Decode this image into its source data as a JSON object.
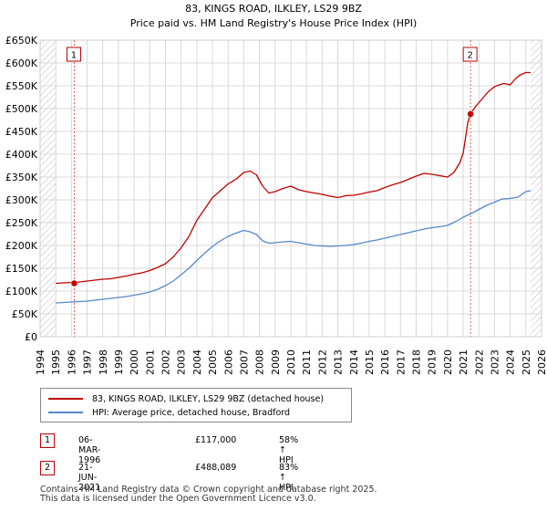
{
  "chart_data": {
    "type": "line",
    "title": "83, KINGS ROAD, ILKLEY, LS29 9BZ",
    "subtitle": "Price paid vs. HM Land Registry's House Price Index (HPI)",
    "xlim": [
      1994,
      2026
    ],
    "ylim": [
      0,
      650000
    ],
    "y_ticks": [
      0,
      50000,
      100000,
      150000,
      200000,
      250000,
      300000,
      350000,
      400000,
      450000,
      500000,
      550000,
      600000,
      650000
    ],
    "y_tick_labels": [
      "£0",
      "£50K",
      "£100K",
      "£150K",
      "£200K",
      "£250K",
      "£300K",
      "£350K",
      "£400K",
      "£450K",
      "£500K",
      "£550K",
      "£600K",
      "£650K"
    ],
    "x_ticks": [
      "1994",
      "1995",
      "1996",
      "1997",
      "1998",
      "1999",
      "2000",
      "2001",
      "2002",
      "2003",
      "2004",
      "2005",
      "2006",
      "2007",
      "2008",
      "2009",
      "2010",
      "2011",
      "2012",
      "2013",
      "2014",
      "2015",
      "2016",
      "2017",
      "2018",
      "2019",
      "2020",
      "2021",
      "2022",
      "2023",
      "2024",
      "2025",
      "2026"
    ],
    "grid": true,
    "data_range": [
      1995.0,
      2025.3
    ],
    "series": [
      {
        "name": "83, KINGS ROAD, ILKLEY, LS29 9BZ (detached house)",
        "color": "#c00000",
        "x": [
          1995.0,
          1995.5,
          1996.0,
          1996.18,
          1996.5,
          1997.0,
          1997.5,
          1998.0,
          1998.5,
          1999.0,
          1999.5,
          2000.0,
          2000.5,
          2001.0,
          2001.5,
          2002.0,
          2002.5,
          2003.0,
          2003.5,
          2004.0,
          2004.5,
          2005.0,
          2005.5,
          2006.0,
          2006.5,
          2007.0,
          2007.4,
          2007.8,
          2008.2,
          2008.6,
          2009.0,
          2009.5,
          2010.0,
          2010.5,
          2011.0,
          2011.5,
          2012.0,
          2012.5,
          2013.0,
          2013.5,
          2014.0,
          2014.5,
          2015.0,
          2015.5,
          2016.0,
          2016.5,
          2017.0,
          2017.5,
          2018.0,
          2018.5,
          2019.0,
          2019.5,
          2020.0,
          2020.4,
          2020.8,
          2021.0,
          2021.3,
          2021.47,
          2021.6,
          2021.8,
          2022.0,
          2022.3,
          2022.6,
          2023.0,
          2023.3,
          2023.6,
          2024.0,
          2024.3,
          2024.6,
          2025.0,
          2025.3
        ],
        "values": [
          117000,
          118000,
          119000,
          117000,
          120000,
          122000,
          124000,
          126000,
          127000,
          130000,
          133000,
          137000,
          140000,
          145000,
          152000,
          160000,
          175000,
          195000,
          220000,
          255000,
          280000,
          305000,
          320000,
          335000,
          345000,
          360000,
          363000,
          355000,
          330000,
          315000,
          318000,
          325000,
          330000,
          322000,
          318000,
          315000,
          312000,
          308000,
          305000,
          309000,
          310000,
          313000,
          317000,
          320000,
          327000,
          333000,
          338000,
          345000,
          352000,
          358000,
          356000,
          353000,
          350000,
          360000,
          382000,
          403000,
          470000,
          488089,
          495000,
          505000,
          513000,
          525000,
          537000,
          548000,
          552000,
          555000,
          552000,
          564000,
          573000,
          579000,
          579000
        ]
      },
      {
        "name": "HPI: Average price, detached house, Bradford",
        "color": "#5588c8",
        "x": [
          1995.0,
          1995.5,
          1996.0,
          1996.5,
          1997.0,
          1997.5,
          1998.0,
          1998.5,
          1999.0,
          1999.5,
          2000.0,
          2000.5,
          2001.0,
          2001.5,
          2002.0,
          2002.5,
          2003.0,
          2003.5,
          2004.0,
          2004.5,
          2005.0,
          2005.5,
          2006.0,
          2006.5,
          2007.0,
          2007.4,
          2007.8,
          2008.2,
          2008.6,
          2009.0,
          2009.5,
          2010.0,
          2010.5,
          2011.0,
          2011.5,
          2012.0,
          2012.5,
          2013.0,
          2013.5,
          2014.0,
          2014.5,
          2015.0,
          2015.5,
          2016.0,
          2016.5,
          2017.0,
          2017.5,
          2018.0,
          2018.5,
          2019.0,
          2019.5,
          2020.0,
          2020.5,
          2021.0,
          2021.5,
          2022.0,
          2022.5,
          2023.0,
          2023.5,
          2024.0,
          2024.5,
          2025.0,
          2025.3
        ],
        "values": [
          74000,
          75000,
          76000,
          77000,
          78000,
          80000,
          82000,
          84000,
          86000,
          88000,
          91000,
          94000,
          98000,
          104000,
          112000,
          122000,
          136000,
          150000,
          167000,
          183000,
          198000,
          210000,
          220000,
          227000,
          233000,
          230000,
          224000,
          210000,
          205000,
          206000,
          208000,
          209000,
          206000,
          203000,
          200000,
          199000,
          198000,
          199000,
          200000,
          202000,
          205000,
          209000,
          212000,
          216000,
          220000,
          224000,
          228000,
          232000,
          236000,
          239000,
          241000,
          244000,
          252000,
          262000,
          270000,
          279000,
          288000,
          295000,
          302000,
          303000,
          306000,
          318000,
          320000
        ]
      }
    ],
    "markers": [
      {
        "label": "1",
        "x": 1996.18,
        "price": 117000
      },
      {
        "label": "2",
        "x": 2021.47,
        "price": 488089
      }
    ],
    "hatched_before": 1995.0,
    "hatched_after": 2025.3
  },
  "legend": {
    "items": [
      {
        "label": "83, KINGS ROAD, ILKLEY, LS29 9BZ (detached house)",
        "color": "#c00000"
      },
      {
        "label": "HPI: Average price, detached house, Bradford",
        "color": "#5588c8"
      }
    ]
  },
  "transactions": [
    {
      "num": "1",
      "date": "06-MAR-1996",
      "price": "£117,000",
      "hpi": "58% ↑ HPI"
    },
    {
      "num": "2",
      "date": "21-JUN-2021",
      "price": "£488,089",
      "hpi": "83% ↑ HPI"
    }
  ],
  "footer": {
    "line1": "Contains HM Land Registry data © Crown copyright and database right 2025.",
    "line2": "This data is licensed under the Open Government Licence v3.0."
  }
}
